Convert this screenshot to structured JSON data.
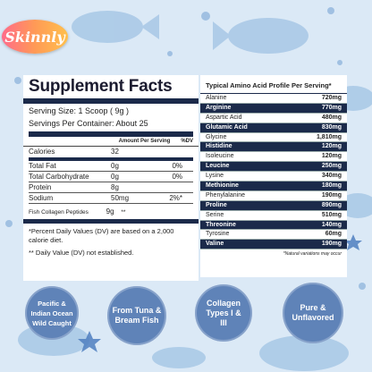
{
  "brand": {
    "logo_text": "Skinnly"
  },
  "supplement_facts": {
    "title": "Supplement Facts",
    "serving_size": "Serving Size: 1 Scoop ( 9g )",
    "servings_per_container": "Servings Per Container: About 25",
    "col_amount": "Amount Per Serving",
    "col_dv": "%DV",
    "rows": [
      {
        "name": "Calories",
        "amount": "32",
        "dv": ""
      },
      {
        "name": "Total Fat",
        "amount": "0g",
        "dv": "0%"
      },
      {
        "name": "Total Carbohydrate",
        "amount": "0g",
        "dv": "0%"
      },
      {
        "name": "Protein",
        "amount": "8g",
        "dv": ""
      },
      {
        "name": "Sodium",
        "amount": "50mg",
        "dv": "2%*"
      }
    ],
    "peptide_name": "Fish Collagen Peptides",
    "peptide_amount": "9g",
    "peptide_dv": "**",
    "footnote_1": "*Percent Daily Values (DV) are based on a 2,000 calorie diet.",
    "footnote_2": "** Daily Value (DV) not established."
  },
  "amino_profile": {
    "title": "Typical Amino Acid Profile Per Serving*",
    "rows": [
      {
        "name": "Alanine",
        "value": "720mg",
        "dark": false
      },
      {
        "name": "Arginine",
        "value": "770mg",
        "dark": true
      },
      {
        "name": "Aspartic Acid",
        "value": "480mg",
        "dark": false
      },
      {
        "name": "Glutamic Acid",
        "value": "830mg",
        "dark": true
      },
      {
        "name": "Glycine",
        "value": "1,810mg",
        "dark": false
      },
      {
        "name": "Histidine",
        "value": "120mg",
        "dark": true
      },
      {
        "name": "Isoleucine",
        "value": "120mg",
        "dark": false
      },
      {
        "name": "Leucine",
        "value": "250mg",
        "dark": true
      },
      {
        "name": "Lysine",
        "value": "340mg",
        "dark": false
      },
      {
        "name": "Methionine",
        "value": "180mg",
        "dark": true
      },
      {
        "name": "Phenylalanine",
        "value": "190mg",
        "dark": false
      },
      {
        "name": "Proline",
        "value": "890mg",
        "dark": true
      },
      {
        "name": "Serine",
        "value": "510mg",
        "dark": false
      },
      {
        "name": "Threonine",
        "value": "140mg",
        "dark": true
      },
      {
        "name": "Tyrosine",
        "value": "60mg",
        "dark": false
      },
      {
        "name": "Valine",
        "value": "190mg",
        "dark": true
      }
    ],
    "note": "*Natural variations may occur"
  },
  "badges": [
    "Pacific & Indian Ocean Wild Caught",
    "From Tuna & Bream Fish",
    "Collagen Types I & III",
    "Pure & Unflavored"
  ],
  "colors": {
    "background": "#dbe9f6",
    "navy": "#1b2a4a",
    "badge": "#5f83b8"
  }
}
